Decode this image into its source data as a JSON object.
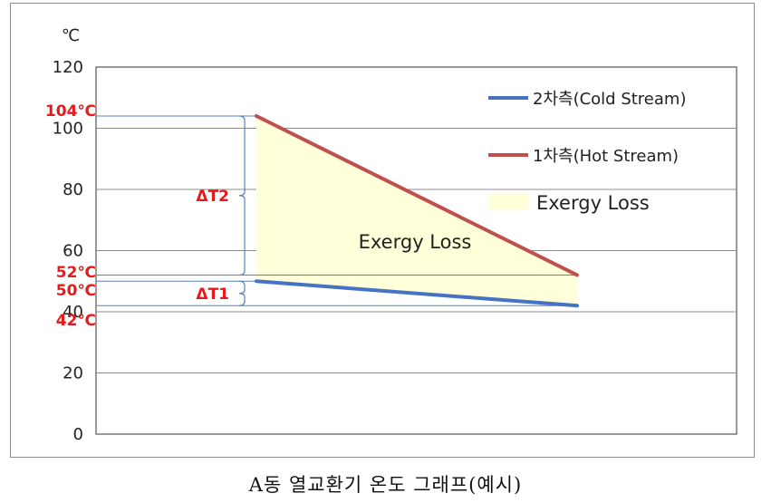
{
  "chart_data": {
    "type": "line",
    "unit_label": "℃",
    "ylim": [
      0,
      120
    ],
    "yticks": [
      0,
      20,
      40,
      60,
      80,
      100,
      120
    ],
    "grid": true,
    "x": [
      0,
      1
    ],
    "series": [
      {
        "name": "2차측(Cold Stream)",
        "color": "#4472c4",
        "values": [
          50,
          42
        ]
      },
      {
        "name": "1차측(Hot Stream)",
        "color": "#c0504d",
        "values": [
          104,
          52
        ]
      }
    ],
    "area": {
      "label": "Exergy Loss",
      "legend_label": "Exergy Loss",
      "color": "#ffffd9"
    },
    "legend_position": "right",
    "annotations": {
      "values": [
        {
          "label": "104℃",
          "value": 104
        },
        {
          "label": "52℃",
          "value": 52
        },
        {
          "label": "50℃",
          "value": 50
        },
        {
          "label": "42℃",
          "value": 42
        }
      ],
      "deltas": [
        {
          "label": "ΔT2",
          "from": 52,
          "to": 104
        },
        {
          "label": "ΔT1",
          "from": 42,
          "to": 50
        }
      ]
    }
  },
  "caption": "A동 열교환기 온도 그래프(예시)"
}
